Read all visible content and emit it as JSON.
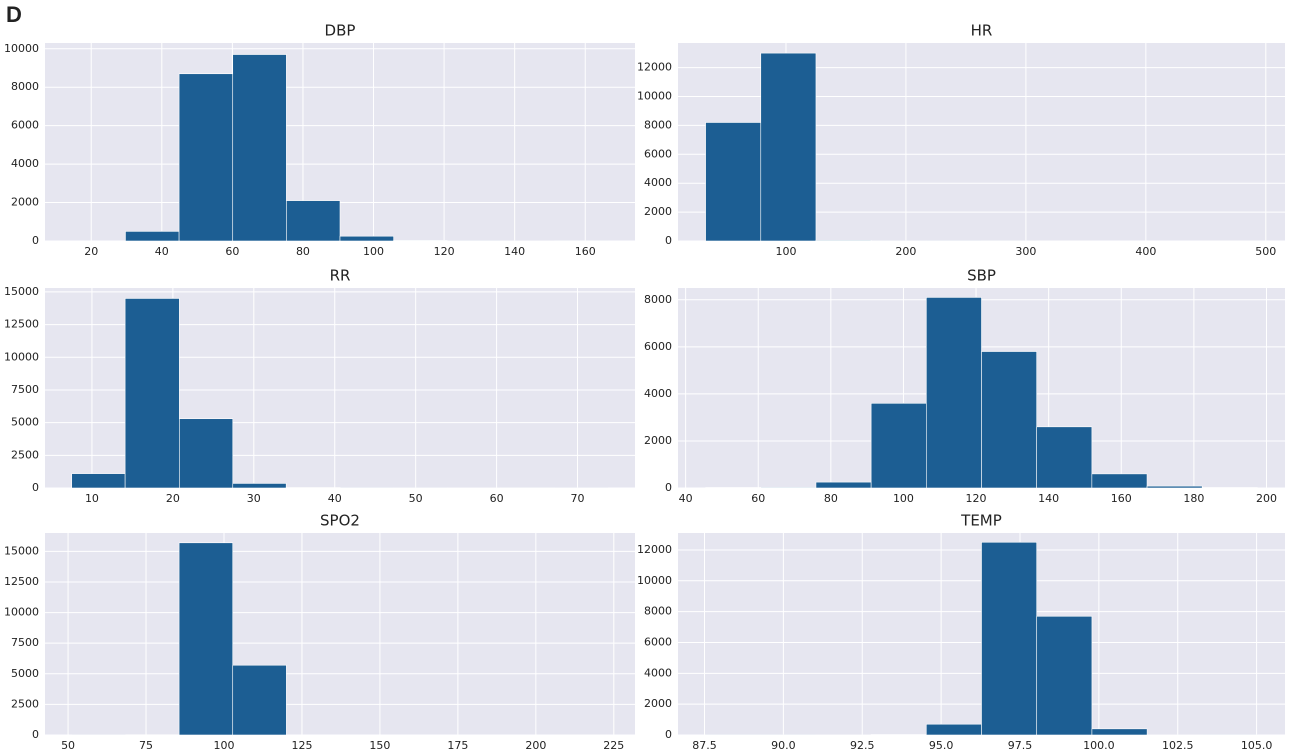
{
  "panel_label": "D",
  "chart_data": [
    {
      "type": "histogram",
      "title": "DBP",
      "color": "#1c5e93",
      "grid": true,
      "bins": [
        14.5,
        29.7,
        44.9,
        60.1,
        75.3,
        90.5,
        105.7,
        120.9,
        136.1,
        151.3,
        166.5
      ],
      "values": [
        10,
        500,
        8700,
        9700,
        2100,
        250,
        30,
        5,
        2,
        1
      ],
      "xlim": [
        6.9,
        174.1
      ],
      "xticks": [
        20,
        40,
        60,
        80,
        100,
        120,
        140,
        160
      ],
      "ylim": [
        0,
        10300
      ],
      "yticks": [
        0,
        2000,
        4000,
        6000,
        8000,
        10000
      ]
    },
    {
      "type": "histogram",
      "title": "HR",
      "color": "#1c5e93",
      "grid": true,
      "bins": [
        33,
        79,
        125,
        171,
        217,
        263,
        309,
        355,
        401,
        447,
        493
      ],
      "values": [
        8200,
        13000,
        50,
        10,
        5,
        2,
        1,
        0,
        0,
        1
      ],
      "xlim": [
        10,
        516
      ],
      "xticks": [
        100,
        200,
        300,
        400,
        500
      ],
      "ylim": [
        0,
        13700
      ],
      "yticks": [
        0,
        2000,
        4000,
        6000,
        8000,
        10000,
        12000
      ]
    },
    {
      "type": "histogram",
      "title": "RR",
      "color": "#1c5e93",
      "grid": true,
      "bins": [
        7.5,
        14.1,
        20.8,
        27.4,
        34.0,
        40.7,
        47.3,
        53.9,
        60.5,
        67.2,
        73.8
      ],
      "values": [
        1100,
        14500,
        5300,
        350,
        30,
        10,
        5,
        3,
        2,
        5
      ],
      "xlim": [
        4.2,
        77.1
      ],
      "xticks": [
        10,
        20,
        30,
        40,
        50,
        60,
        70
      ],
      "ylim": [
        0,
        15300
      ],
      "yticks": [
        0,
        2500,
        5000,
        7500,
        10000,
        12500,
        15000
      ]
    },
    {
      "type": "histogram",
      "title": "SBP",
      "color": "#1c5e93",
      "grid": true,
      "bins": [
        45.5,
        60.7,
        75.9,
        91.1,
        106.3,
        121.5,
        136.7,
        151.9,
        167.1,
        182.3,
        197.5
      ],
      "values": [
        20,
        30,
        250,
        3600,
        8100,
        5800,
        2600,
        600,
        80,
        20
      ],
      "xlim": [
        37.9,
        205.1
      ],
      "xticks": [
        40,
        60,
        80,
        100,
        120,
        140,
        160,
        180,
        200
      ],
      "ylim": [
        0,
        8500
      ],
      "yticks": [
        0,
        2000,
        4000,
        6000,
        8000
      ]
    },
    {
      "type": "histogram",
      "title": "SPO2",
      "color": "#1c5e93",
      "grid": true,
      "bins": [
        51.2,
        68.4,
        85.6,
        102.8,
        120.0,
        137.2,
        154.4,
        171.6,
        188.8,
        206.0,
        223.2
      ],
      "values": [
        5,
        20,
        15700,
        5700,
        0,
        0,
        0,
        0,
        0,
        1
      ],
      "xlim": [
        42.6,
        231.8
      ],
      "xticks": [
        50,
        75,
        100,
        125,
        150,
        175,
        200,
        225
      ],
      "ylim": [
        0,
        16500
      ],
      "yticks": [
        0,
        2500,
        5000,
        7500,
        10000,
        12500,
        15000
      ]
    },
    {
      "type": "histogram",
      "title": "TEMP",
      "color": "#1c5e93",
      "grid": true,
      "bins": [
        87.53,
        89.28,
        91.03,
        92.78,
        94.53,
        96.28,
        98.03,
        99.78,
        101.53,
        103.28,
        105.03
      ],
      "values": [
        5,
        5,
        10,
        30,
        700,
        12500,
        7700,
        400,
        10,
        5
      ],
      "xlim": [
        86.66,
        105.9
      ],
      "xticks": [
        87.5,
        {
          "value": 90,
          "label": "90.0"
        },
        92.5,
        {
          "value": 95,
          "label": "95.0"
        },
        97.5,
        {
          "value": 100,
          "label": "100.0"
        },
        102.5,
        {
          "value": 105,
          "label": "105.0"
        }
      ],
      "ylim": [
        0,
        13100
      ],
      "yticks": [
        0,
        2000,
        4000,
        6000,
        8000,
        10000,
        12000
      ]
    }
  ]
}
